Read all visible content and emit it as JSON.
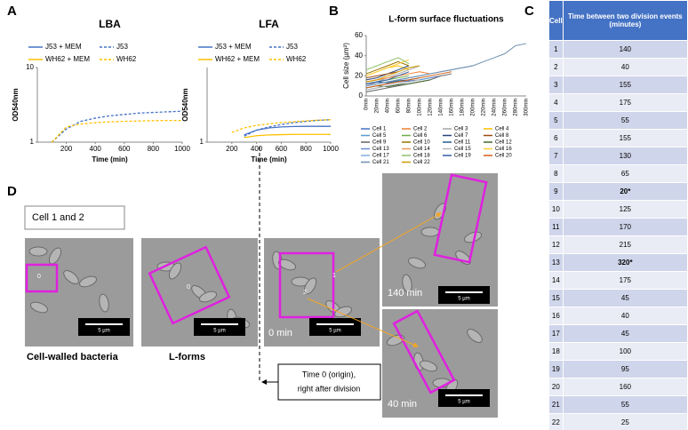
{
  "panel_labels": [
    "A",
    "B",
    "C",
    "D"
  ],
  "chart_data": [
    {
      "type": "line",
      "title": "LBA",
      "x_label": "Time (min)",
      "y_label": "OD540nm",
      "log_y": true,
      "legend": "top",
      "x": [
        0,
        100,
        200,
        300,
        400,
        500,
        600,
        700,
        800,
        900,
        1000
      ],
      "xlim": [
        0,
        1000
      ],
      "xticks": [
        200,
        400,
        600,
        800,
        1000
      ],
      "ylim": [
        1,
        10
      ],
      "yticks": [
        1,
        10
      ],
      "series": [
        {
          "name": "J53 + MEM",
          "color": "#4472c4",
          "style": "solid",
          "values": [
            null,
            null,
            null,
            null,
            null,
            null,
            null,
            null,
            null,
            null,
            null
          ]
        },
        {
          "name": "J53",
          "color": "#4472c4",
          "style": "dashed",
          "values": [
            null,
            1.0,
            1.5,
            1.9,
            2.1,
            2.25,
            2.35,
            2.45,
            2.5,
            2.55,
            2.6
          ]
        },
        {
          "name": "WH62 + MEM",
          "color": "#ffc000",
          "style": "solid",
          "values": [
            null,
            null,
            null,
            null,
            null,
            null,
            null,
            null,
            null,
            null,
            null
          ]
        },
        {
          "name": "WH62",
          "color": "#ffc000",
          "style": "dashed",
          "values": [
            null,
            1.0,
            1.6,
            1.75,
            1.82,
            1.87,
            1.9,
            1.92,
            1.94,
            1.95,
            1.95
          ]
        }
      ]
    },
    {
      "type": "line",
      "title": "LFA",
      "x_label": "Time (min)",
      "y_label": "OD540nm",
      "log_y": true,
      "legend": "top",
      "x": [
        0,
        100,
        200,
        300,
        400,
        500,
        600,
        700,
        800,
        900,
        1000
      ],
      "xlim": [
        0,
        1000
      ],
      "xticks": [
        200,
        400,
        600,
        800,
        1000
      ],
      "ylim": [
        1,
        10
      ],
      "yticks": [
        1
      ],
      "series": [
        {
          "name": "J53 + MEM",
          "color": "#4472c4",
          "style": "solid",
          "values": [
            null,
            null,
            null,
            1.25,
            1.45,
            1.55,
            1.6,
            1.62,
            1.63,
            1.63,
            1.63
          ]
        },
        {
          "name": "J53",
          "color": "#4472c4",
          "style": "dashed",
          "values": [
            null,
            null,
            null,
            1.2,
            1.45,
            1.6,
            1.72,
            1.82,
            1.9,
            1.96,
            2.0
          ]
        },
        {
          "name": "WH62 + MEM",
          "color": "#ffc000",
          "style": "solid",
          "values": [
            null,
            null,
            null,
            1.15,
            1.22,
            1.25,
            1.26,
            1.27,
            1.27,
            1.27,
            1.27
          ]
        },
        {
          "name": "WH62",
          "color": "#ffc000",
          "style": "dashed",
          "values": [
            null,
            null,
            1.35,
            1.55,
            1.68,
            1.76,
            1.83,
            1.88,
            1.93,
            1.97,
            2.0
          ]
        }
      ]
    },
    {
      "type": "line",
      "title": "L-form surface fluctuations",
      "y_label": "Cell size (µm²)",
      "log_y": false,
      "legend": "bottom",
      "categories": [
        "0min",
        "20min",
        "40min",
        "60min",
        "80min",
        "100min",
        "120min",
        "140min",
        "160min",
        "180min",
        "200min",
        "220min",
        "240min",
        "260min",
        "280min",
        "300min"
      ],
      "ylim": [
        0,
        60
      ],
      "yticks": [
        0,
        20,
        40,
        60
      ],
      "series": [
        {
          "name": "Cell 1",
          "color": "#4472c4",
          "style": "solid",
          "values": [
            8,
            10,
            12,
            14,
            15,
            16,
            18,
            20,
            null,
            null,
            null,
            null,
            null,
            null,
            null,
            null
          ]
        },
        {
          "name": "Cell 2",
          "color": "#ed7d31",
          "style": "solid",
          "values": [
            14,
            16,
            18,
            20,
            22,
            24,
            22,
            null,
            null,
            null,
            null,
            null,
            null,
            null,
            null,
            null
          ]
        },
        {
          "name": "Cell 3",
          "color": "#a5a5a5",
          "style": "solid",
          "values": [
            10,
            14,
            18,
            22,
            26,
            30,
            null,
            null,
            null,
            null,
            null,
            null,
            null,
            null,
            null,
            null
          ]
        },
        {
          "name": "Cell 4",
          "color": "#ffc000",
          "style": "solid",
          "values": [
            20,
            24,
            28,
            30,
            26,
            null,
            null,
            null,
            null,
            null,
            null,
            null,
            null,
            null,
            null,
            null
          ]
        },
        {
          "name": "Cell 5",
          "color": "#5b9bd5",
          "style": "solid",
          "values": [
            6,
            8,
            10,
            12,
            14,
            16,
            18,
            null,
            null,
            null,
            null,
            null,
            null,
            null,
            null,
            null
          ]
        },
        {
          "name": "Cell 6",
          "color": "#70ad47",
          "style": "solid",
          "values": [
            12,
            14,
            16,
            18,
            20,
            null,
            null,
            null,
            null,
            null,
            null,
            null,
            null,
            null,
            null,
            null
          ]
        },
        {
          "name": "Cell 7",
          "color": "#264478",
          "style": "solid",
          "values": [
            16,
            18,
            22,
            26,
            30,
            null,
            null,
            null,
            null,
            null,
            null,
            null,
            null,
            null,
            null,
            null
          ]
        },
        {
          "name": "Cell 8",
          "color": "#9e480e",
          "style": "solid",
          "values": [
            18,
            20,
            22,
            24,
            null,
            null,
            null,
            null,
            null,
            null,
            null,
            null,
            null,
            null,
            null,
            null
          ]
        },
        {
          "name": "Cell 9",
          "color": "#636363",
          "style": "solid",
          "values": [
            4,
            6,
            8,
            10,
            12,
            14,
            16,
            20,
            22,
            null,
            null,
            null,
            null,
            null,
            null,
            null
          ]
        },
        {
          "name": "Cell 10",
          "color": "#997300",
          "style": "solid",
          "values": [
            22,
            26,
            30,
            34,
            30,
            null,
            null,
            null,
            null,
            null,
            null,
            null,
            null,
            null,
            null,
            null
          ]
        },
        {
          "name": "Cell 11",
          "color": "#255e91",
          "style": "solid",
          "values": [
            12,
            14,
            13,
            15,
            16,
            18,
            null,
            null,
            null,
            null,
            null,
            null,
            null,
            null,
            null,
            null
          ]
        },
        {
          "name": "Cell 12",
          "color": "#43682b",
          "style": "solid",
          "values": [
            8,
            10,
            9,
            11,
            12,
            14,
            16,
            null,
            null,
            null,
            null,
            null,
            null,
            null,
            null,
            null
          ]
        },
        {
          "name": "Cell 13",
          "color": "#698ed0",
          "style": "solid",
          "values": [
            10,
            12,
            14,
            16,
            18,
            20,
            22,
            24,
            26,
            28,
            30,
            null,
            null,
            null,
            null,
            null
          ]
        },
        {
          "name": "Cell 14",
          "color": "#f1975a",
          "style": "solid",
          "values": [
            14,
            16,
            18,
            20,
            22,
            null,
            null,
            null,
            null,
            null,
            null,
            null,
            null,
            null,
            null,
            null
          ]
        },
        {
          "name": "Cell 15",
          "color": "#b7b7b7",
          "style": "solid",
          "values": [
            6,
            8,
            10,
            12,
            14,
            16,
            null,
            null,
            null,
            null,
            null,
            null,
            null,
            null,
            null,
            null
          ]
        },
        {
          "name": "Cell 16",
          "color": "#ffcd33",
          "style": "solid",
          "values": [
            20,
            24,
            28,
            32,
            36,
            null,
            null,
            null,
            null,
            null,
            null,
            null,
            null,
            null,
            null,
            null
          ]
        },
        {
          "name": "Cell 17",
          "color": "#7cafdd",
          "style": "solid",
          "values": [
            10,
            12,
            14,
            16,
            18,
            20,
            22,
            null,
            null,
            null,
            null,
            null,
            null,
            null,
            null,
            null
          ]
        },
        {
          "name": "Cell 18",
          "color": "#8cc168",
          "style": "solid",
          "values": [
            26,
            30,
            34,
            38,
            32,
            null,
            null,
            null,
            null,
            null,
            null,
            null,
            null,
            null,
            null,
            null
          ]
        },
        {
          "name": "Cell 19",
          "color": "#335aa1",
          "style": "solid",
          "values": [
            12,
            14,
            16,
            20,
            24,
            null,
            null,
            null,
            null,
            null,
            null,
            null,
            null,
            null,
            null,
            null
          ]
        },
        {
          "name": "Cell 20",
          "color": "#d26012",
          "style": "solid",
          "values": [
            8,
            10,
            12,
            14,
            16,
            18,
            20,
            22,
            24,
            null,
            null,
            null,
            null,
            null,
            null,
            null
          ]
        },
        {
          "name": "Cell 21",
          "color": "#6f8fae",
          "style": "solid",
          "values": [
            10,
            12,
            14,
            16,
            18,
            20,
            22,
            24,
            26,
            28,
            30,
            34,
            38,
            42,
            50,
            52
          ]
        },
        {
          "name": "Cell 22",
          "color": "#cc9a00",
          "style": "solid",
          "values": [
            14,
            16,
            20,
            24,
            28,
            30,
            null,
            null,
            null,
            null,
            null,
            null,
            null,
            null,
            null,
            null
          ]
        }
      ]
    }
  ],
  "table": {
    "header": [
      "Cell",
      "Time between two division events (minutes)"
    ],
    "rows": [
      [
        1,
        140
      ],
      [
        2,
        40
      ],
      [
        3,
        155
      ],
      [
        4,
        175
      ],
      [
        5,
        55
      ],
      [
        6,
        155
      ],
      [
        7,
        130
      ],
      [
        8,
        65
      ],
      [
        9,
        "20*"
      ],
      [
        10,
        125
      ],
      [
        11,
        170
      ],
      [
        12,
        215
      ],
      [
        13,
        "320*"
      ],
      [
        14,
        175
      ],
      [
        15,
        45
      ],
      [
        16,
        40
      ],
      [
        17,
        45
      ],
      [
        18,
        100
      ],
      [
        19,
        95
      ],
      [
        20,
        160
      ],
      [
        21,
        55
      ],
      [
        22,
        25
      ]
    ]
  },
  "panel_d": {
    "caption": "Cell 1 and 2",
    "label_walled": "Cell-walled bacteria",
    "label_lforms": "L-forms",
    "origin_note": [
      "Time 0 (origin),",
      "right after division"
    ],
    "images": [
      {
        "scale_bar": "5 µm",
        "cell_labels": [
          "0"
        ]
      },
      {
        "scale_bar": "5 µm",
        "cell_labels": [
          "0"
        ]
      },
      {
        "scale_bar": "5 µm",
        "cell_labels": [
          "1",
          "2"
        ],
        "time": "0 min"
      },
      {
        "scale_bar": "5 µm",
        "time": "140 min"
      },
      {
        "scale_bar": "5 µm",
        "time": "40 min"
      }
    ]
  }
}
